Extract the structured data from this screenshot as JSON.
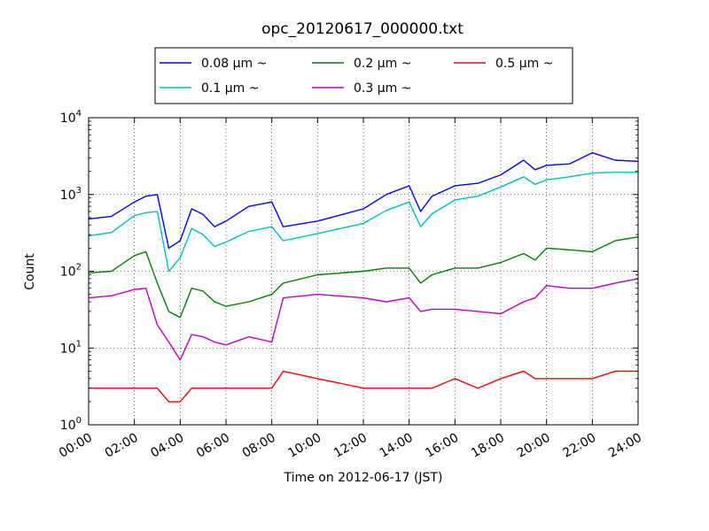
{
  "chart_data": {
    "type": "line",
    "title": "opc_20120617_000000.txt",
    "xlabel": "Time on 2012-06-17 (JST)",
    "ylabel": "Count",
    "yscale": "log",
    "ylim": [
      1,
      10000
    ],
    "xlim": [
      "2012-06-17 00:00",
      "2012-06-18 00:00"
    ],
    "grid": true,
    "legend_position": "top-center",
    "x_ticks": [
      "00:00",
      "02:00",
      "04:00",
      "06:00",
      "08:00",
      "10:00",
      "12:00",
      "14:00",
      "16:00",
      "18:00",
      "20:00",
      "22:00",
      "24:00"
    ],
    "y_ticks": [
      {
        "value": 1,
        "base": "10",
        "exp": "0"
      },
      {
        "value": 10,
        "base": "10",
        "exp": "1"
      },
      {
        "value": 100,
        "base": "10",
        "exp": "2"
      },
      {
        "value": 1000,
        "base": "10",
        "exp": "3"
      },
      {
        "value": 10000,
        "base": "10",
        "exp": "4"
      }
    ],
    "x": [
      "00:00",
      "01:00",
      "02:00",
      "02:30",
      "03:00",
      "03:30",
      "04:00",
      "04:30",
      "05:00",
      "05:30",
      "06:00",
      "07:00",
      "08:00",
      "08:30",
      "10:00",
      "12:00",
      "13:00",
      "14:00",
      "14:30",
      "15:00",
      "16:00",
      "17:00",
      "18:00",
      "19:00",
      "19:30",
      "20:00",
      "21:00",
      "22:00",
      "23:00",
      "24:00"
    ],
    "series": [
      {
        "name": "0.08 μm ~",
        "color": "#0000ff",
        "values": [
          480,
          520,
          800,
          950,
          1000,
          200,
          250,
          650,
          550,
          380,
          450,
          700,
          800,
          380,
          450,
          650,
          1000,
          1300,
          600,
          950,
          1300,
          1400,
          1800,
          2800,
          2100,
          2400,
          2500,
          3500,
          2800,
          2700
        ]
      },
      {
        "name": "0.1 μm ~",
        "color": "#00bfbf",
        "values": [
          290,
          320,
          530,
          580,
          600,
          100,
          150,
          360,
          300,
          210,
          240,
          330,
          380,
          250,
          310,
          420,
          620,
          800,
          380,
          560,
          850,
          950,
          1250,
          1700,
          1350,
          1550,
          1700,
          1900,
          1950,
          1950
        ]
      },
      {
        "name": "0.2 μm ~",
        "color": "#008000",
        "values": [
          95,
          100,
          160,
          180,
          70,
          30,
          25,
          60,
          55,
          40,
          35,
          40,
          50,
          70,
          90,
          100,
          110,
          110,
          70,
          90,
          110,
          110,
          130,
          170,
          140,
          200,
          190,
          180,
          250,
          280
        ]
      },
      {
        "name": "0.3 μm ~",
        "color": "#bf00bf",
        "values": [
          45,
          48,
          58,
          60,
          20,
          12,
          7,
          15,
          14,
          12,
          11,
          14,
          12,
          45,
          50,
          45,
          40,
          45,
          30,
          32,
          32,
          30,
          28,
          40,
          45,
          65,
          60,
          60,
          70,
          80
        ]
      },
      {
        "name": "0.5 μm ~",
        "color": "#ff0000",
        "values": [
          3,
          3,
          3,
          3,
          3,
          2,
          2,
          3,
          3,
          3,
          3,
          3,
          3,
          5,
          4,
          3,
          3,
          3,
          3,
          3,
          4,
          3,
          4,
          5,
          4,
          4,
          4,
          4,
          5,
          5
        ]
      }
    ]
  }
}
